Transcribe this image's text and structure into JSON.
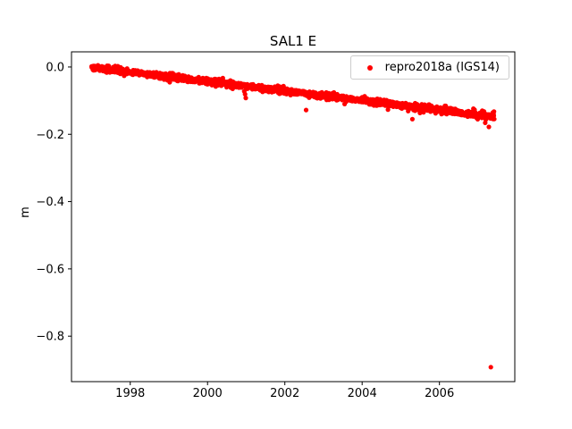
{
  "figure": {
    "background": "#ffffff",
    "spine_color": "#000000"
  },
  "chart_data": {
    "type": "scatter",
    "title": "SAL1 E",
    "xlabel": "",
    "ylabel": "m",
    "xlim": [
      1996.48,
      2007.95
    ],
    "ylim": [
      -0.935,
      0.045
    ],
    "xticks": [
      1998,
      2000,
      2002,
      2004,
      2006
    ],
    "xtick_labels": [
      "1998",
      "2000",
      "2002",
      "2004",
      "2006"
    ],
    "yticks": [
      0.0,
      -0.2,
      -0.4,
      -0.6,
      -0.8
    ],
    "ytick_labels": [
      "0.0",
      "−0.2",
      "−0.4",
      "−0.6",
      "−0.8"
    ],
    "grid": false,
    "legend": {
      "position": "upper-right",
      "entries": [
        {
          "label": "repro2018a (IGS14)",
          "color": "#ff0000",
          "marker": "point"
        }
      ]
    },
    "series": [
      {
        "name": "repro2018a (IGS14)",
        "color": "#ff0000",
        "marker_radius_px": 2.6,
        "trend": {
          "x_start": 1997.0,
          "x_end": 2007.42,
          "y_start": -0.001,
          "y_end": -0.147,
          "noise_sigma": 0.0042,
          "n_points": 1600,
          "seed": 42
        },
        "outliers": [
          [
            2000.95,
            -0.072
          ],
          [
            2000.97,
            -0.081
          ],
          [
            2000.99,
            -0.092
          ],
          [
            2002.55,
            -0.128
          ],
          [
            2005.3,
            -0.155
          ],
          [
            2007.28,
            -0.178
          ],
          [
            2007.33,
            -0.892
          ]
        ]
      }
    ]
  }
}
